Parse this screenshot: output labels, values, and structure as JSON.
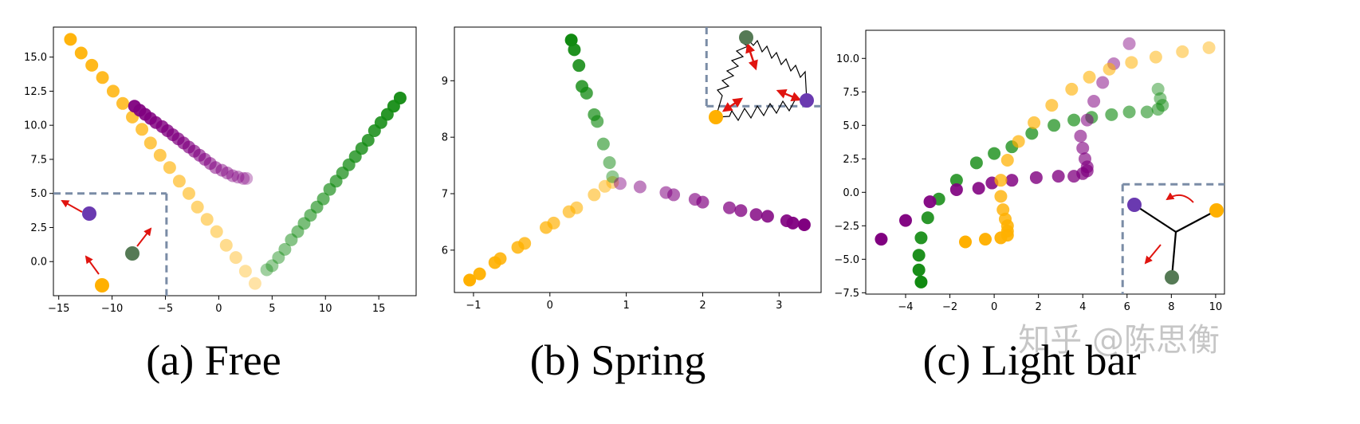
{
  "colors": {
    "orange": "#ffb000",
    "purple": "#800080",
    "green": "#118a11",
    "dark_green": "#557a55",
    "violet": "#6a3ab0",
    "arrow_red": "#e0140f",
    "inset_border": "#7a8ca6"
  },
  "watermark": "知乎 @陈思衡",
  "chart_data": [
    {
      "type": "scatter",
      "caption": "(a)  Free",
      "xlim": [
        -15.5,
        18.5
      ],
      "ylim": [
        -2.5,
        17.2
      ],
      "xticks": [
        -15,
        -10,
        -5,
        0,
        5,
        10,
        15
      ],
      "xtick_labels": [
        "−15",
        "−10",
        "−5",
        "0",
        "5",
        "10",
        "15"
      ],
      "yticks": [
        0,
        2.5,
        5,
        7.5,
        10,
        12.5,
        15
      ],
      "ytick_labels": [
        "0.0",
        "2.5",
        "5.0",
        "7.5",
        "10.0",
        "12.5",
        "15.0"
      ],
      "grid": false,
      "series": [
        {
          "color": "orange",
          "x": [
            -13.9,
            -12.9,
            -11.9,
            -10.9,
            -9.9,
            -9.0,
            -8.1,
            -7.2,
            -6.4,
            -5.5,
            -4.6,
            -3.7,
            -2.8,
            -2.0,
            -1.1,
            -0.2,
            0.7,
            1.6,
            2.5,
            3.4
          ],
          "y": [
            16.3,
            15.3,
            14.4,
            13.5,
            12.5,
            11.6,
            10.6,
            9.7,
            8.7,
            7.8,
            6.9,
            5.9,
            5.0,
            4.0,
            3.1,
            2.2,
            1.2,
            0.3,
            -0.7,
            -1.6
          ],
          "opacity_from": 0.95,
          "opacity_to": 0.35
        },
        {
          "color": "purple",
          "x": [
            -7.9,
            -7.4,
            -6.9,
            -6.4,
            -5.9,
            -5.3,
            -4.8,
            -4.3,
            -3.8,
            -3.3,
            -2.8,
            -2.3,
            -1.8,
            -1.3,
            -0.8,
            -0.3,
            0.3,
            0.8,
            1.3,
            1.8,
            2.3,
            2.6
          ],
          "y": [
            11.4,
            11.1,
            10.8,
            10.5,
            10.2,
            9.9,
            9.6,
            9.3,
            9.0,
            8.7,
            8.4,
            8.1,
            7.8,
            7.5,
            7.2,
            6.9,
            6.7,
            6.5,
            6.3,
            6.2,
            6.1,
            6.1
          ],
          "opacity_from": 0.95,
          "opacity_to": 0.35
        },
        {
          "color": "green",
          "x": [
            17.0,
            16.4,
            15.8,
            15.2,
            14.6,
            14.0,
            13.4,
            12.8,
            12.2,
            11.6,
            11.0,
            10.4,
            9.8,
            9.2,
            8.6,
            8.0,
            7.4,
            6.8,
            6.2,
            5.6,
            5.0,
            4.5
          ],
          "y": [
            12.0,
            11.4,
            10.8,
            10.2,
            9.6,
            8.9,
            8.3,
            7.7,
            7.1,
            6.5,
            5.9,
            5.3,
            4.6,
            4.0,
            3.4,
            2.8,
            2.2,
            1.6,
            0.9,
            0.3,
            -0.3,
            -0.6
          ],
          "opacity_from": 0.95,
          "opacity_to": 0.4
        }
      ],
      "inset": {
        "position": "bottom-left",
        "corner": [
          -4.9,
          5.0
        ],
        "edges": [
          "top",
          "right"
        ]
      }
    },
    {
      "type": "scatter",
      "caption": "(b)  Spring",
      "xlim": [
        -1.25,
        3.55
      ],
      "ylim": [
        5.25,
        9.95
      ],
      "xticks": [
        -1,
        0,
        1,
        2,
        3
      ],
      "xtick_labels": [
        "−1",
        "0",
        "1",
        "2",
        "3"
      ],
      "yticks": [
        6,
        7,
        8,
        9
      ],
      "ytick_labels": [
        "6",
        "7",
        "8",
        "9"
      ],
      "grid": false,
      "series": [
        {
          "color": "orange",
          "x": [
            -1.05,
            -0.92,
            -0.72,
            -0.65,
            -0.42,
            -0.33,
            -0.05,
            0.05,
            0.25,
            0.35,
            0.58,
            0.72,
            0.82
          ],
          "y": [
            5.47,
            5.58,
            5.78,
            5.85,
            6.05,
            6.12,
            6.4,
            6.48,
            6.68,
            6.75,
            6.98,
            7.13,
            7.2
          ],
          "opacity_from": 1.0,
          "opacity_to": 0.45
        },
        {
          "color": "green",
          "x": [
            0.28,
            0.32,
            0.38,
            0.42,
            0.48,
            0.58,
            0.62,
            0.7,
            0.78,
            0.82
          ],
          "y": [
            9.72,
            9.55,
            9.27,
            8.9,
            8.78,
            8.4,
            8.28,
            7.88,
            7.55,
            7.3
          ],
          "opacity_from": 1.0,
          "opacity_to": 0.45
        },
        {
          "color": "purple",
          "x": [
            0.92,
            1.18,
            1.52,
            1.62,
            1.9,
            2.0,
            2.35,
            2.5,
            2.7,
            2.85,
            3.1,
            3.18,
            3.33
          ],
          "y": [
            7.18,
            7.12,
            7.02,
            6.98,
            6.9,
            6.85,
            6.75,
            6.7,
            6.63,
            6.6,
            6.52,
            6.48,
            6.45
          ],
          "opacity_from": 0.45,
          "opacity_to": 1.0
        }
      ],
      "inset": {
        "position": "top-right",
        "corner": [
          2.05,
          8.55
        ],
        "edges": [
          "left",
          "bottom"
        ]
      }
    },
    {
      "type": "scatter",
      "caption": "(c)  Light bar",
      "xlim": [
        -5.8,
        10.4
      ],
      "ylim": [
        -7.6,
        12.1
      ],
      "xticks": [
        -4,
        -2,
        0,
        2,
        4,
        6,
        8,
        10
      ],
      "xtick_labels": [
        "−4",
        "−2",
        "0",
        "2",
        "4",
        "6",
        "8",
        "10"
      ],
      "yticks": [
        -7.5,
        -5,
        -2.5,
        0,
        2.5,
        5,
        7.5,
        10
      ],
      "ytick_labels": [
        "−7.5",
        "−5.0",
        "−2.5",
        "0.0",
        "2.5",
        "5.0",
        "7.5",
        "10.0"
      ],
      "grid": false,
      "series": [
        {
          "color": "green",
          "x": [
            -3.3,
            -3.4,
            -3.4,
            -3.3,
            -3.0,
            -2.5,
            -1.7,
            -0.8,
            0.0,
            0.8,
            1.7,
            2.7,
            3.6,
            4.4,
            5.3,
            6.1,
            6.9,
            7.4,
            7.6,
            7.5,
            7.4
          ],
          "y": [
            -6.7,
            -5.8,
            -4.7,
            -3.4,
            -1.9,
            -0.5,
            0.9,
            2.2,
            2.9,
            3.4,
            4.4,
            5.0,
            5.4,
            5.6,
            5.8,
            6.0,
            6.0,
            6.2,
            6.5,
            7.0,
            7.7
          ],
          "opacity_from": 1.0,
          "opacity_to": 0.45
        },
        {
          "color": "purple",
          "x": [
            -5.1,
            -4.0,
            -2.9,
            -1.7,
            -0.7,
            -0.1,
            0.8,
            1.9,
            2.9,
            3.6,
            4.0,
            4.2,
            4.2,
            4.1,
            4.0,
            3.9,
            4.2,
            4.5,
            4.9,
            5.4,
            6.1
          ],
          "y": [
            -3.5,
            -2.1,
            -0.7,
            0.2,
            0.3,
            0.7,
            0.9,
            1.1,
            1.2,
            1.2,
            1.4,
            1.6,
            1.9,
            2.5,
            3.3,
            4.2,
            5.4,
            6.8,
            8.2,
            9.6,
            11.1
          ],
          "opacity_from": 1.0,
          "opacity_to": 0.45
        },
        {
          "color": "orange",
          "x": [
            -1.3,
            -0.4,
            0.3,
            0.6,
            0.6,
            0.6,
            0.5,
            0.4,
            0.3,
            0.3,
            0.6,
            1.1,
            1.8,
            2.6,
            3.5,
            4.3,
            5.2,
            6.2,
            7.3,
            8.5,
            9.7
          ],
          "y": [
            -3.7,
            -3.5,
            -3.4,
            -3.2,
            -2.9,
            -2.5,
            -2.0,
            -1.3,
            -0.3,
            0.9,
            2.4,
            3.8,
            5.2,
            6.5,
            7.7,
            8.6,
            9.2,
            9.7,
            10.1,
            10.5,
            10.8
          ],
          "opacity_from": 1.0,
          "opacity_to": 0.45
        }
      ],
      "inset": {
        "position": "bottom-right",
        "corner": [
          5.8,
          0.6
        ],
        "edges": [
          "left",
          "top"
        ]
      }
    }
  ]
}
